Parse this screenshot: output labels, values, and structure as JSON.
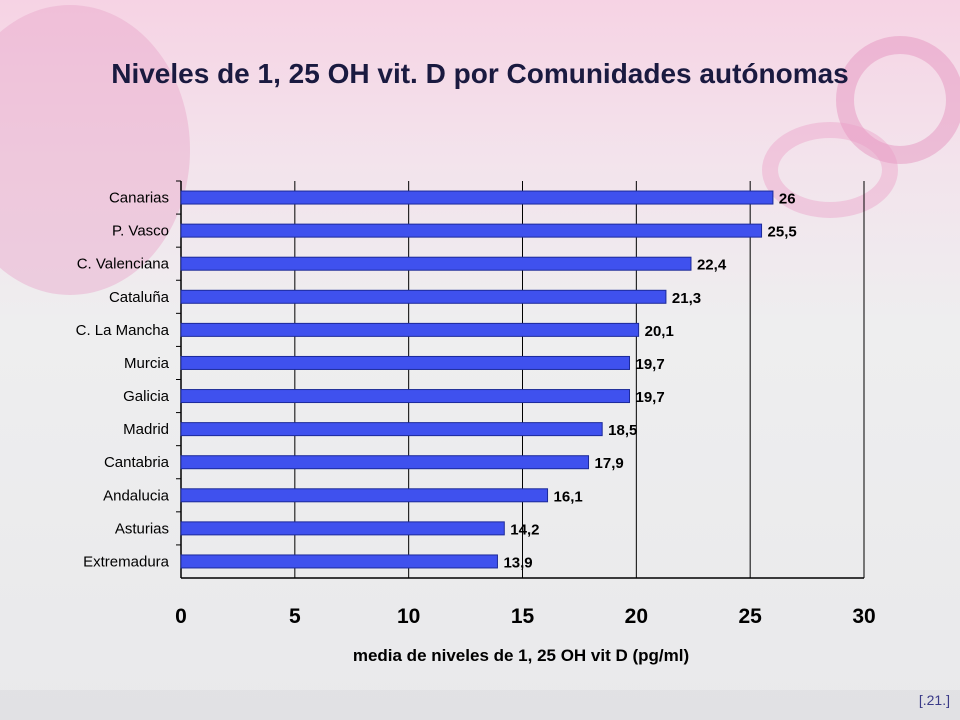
{
  "slide": {
    "title": "Niveles de 1, 25 OH vit. D por Comunidades autónomas",
    "reference": "[.21.]"
  },
  "colors": {
    "bar": "#3f51ee",
    "bar_edge": "#1c2a9a",
    "grid": "#000000"
  },
  "chart_data": {
    "type": "bar",
    "orientation": "horizontal",
    "categories": [
      "Canarias",
      "P. Vasco",
      "C. Valenciana",
      "Cataluña",
      "C. La Mancha",
      "Murcia",
      "Galicia",
      "Madrid",
      "Cantabria",
      "Andalucia",
      "Asturias",
      "Extremadura"
    ],
    "values": [
      26,
      25.5,
      22.4,
      21.3,
      20.1,
      19.7,
      19.7,
      18.5,
      17.9,
      16.1,
      14.2,
      13.9
    ],
    "value_labels": [
      "26",
      "25,5",
      "22,4",
      "21,3",
      "20,1",
      "19,7",
      "19,7",
      "18,5",
      "17,9",
      "16,1",
      "14,2",
      "13,9"
    ],
    "xlabel": "media de niveles de 1, 25 OH vit D (pg/ml)",
    "xlim": [
      0,
      30
    ],
    "xticks": [
      0,
      5,
      10,
      15,
      20,
      25,
      30
    ],
    "grid": "vertical"
  }
}
